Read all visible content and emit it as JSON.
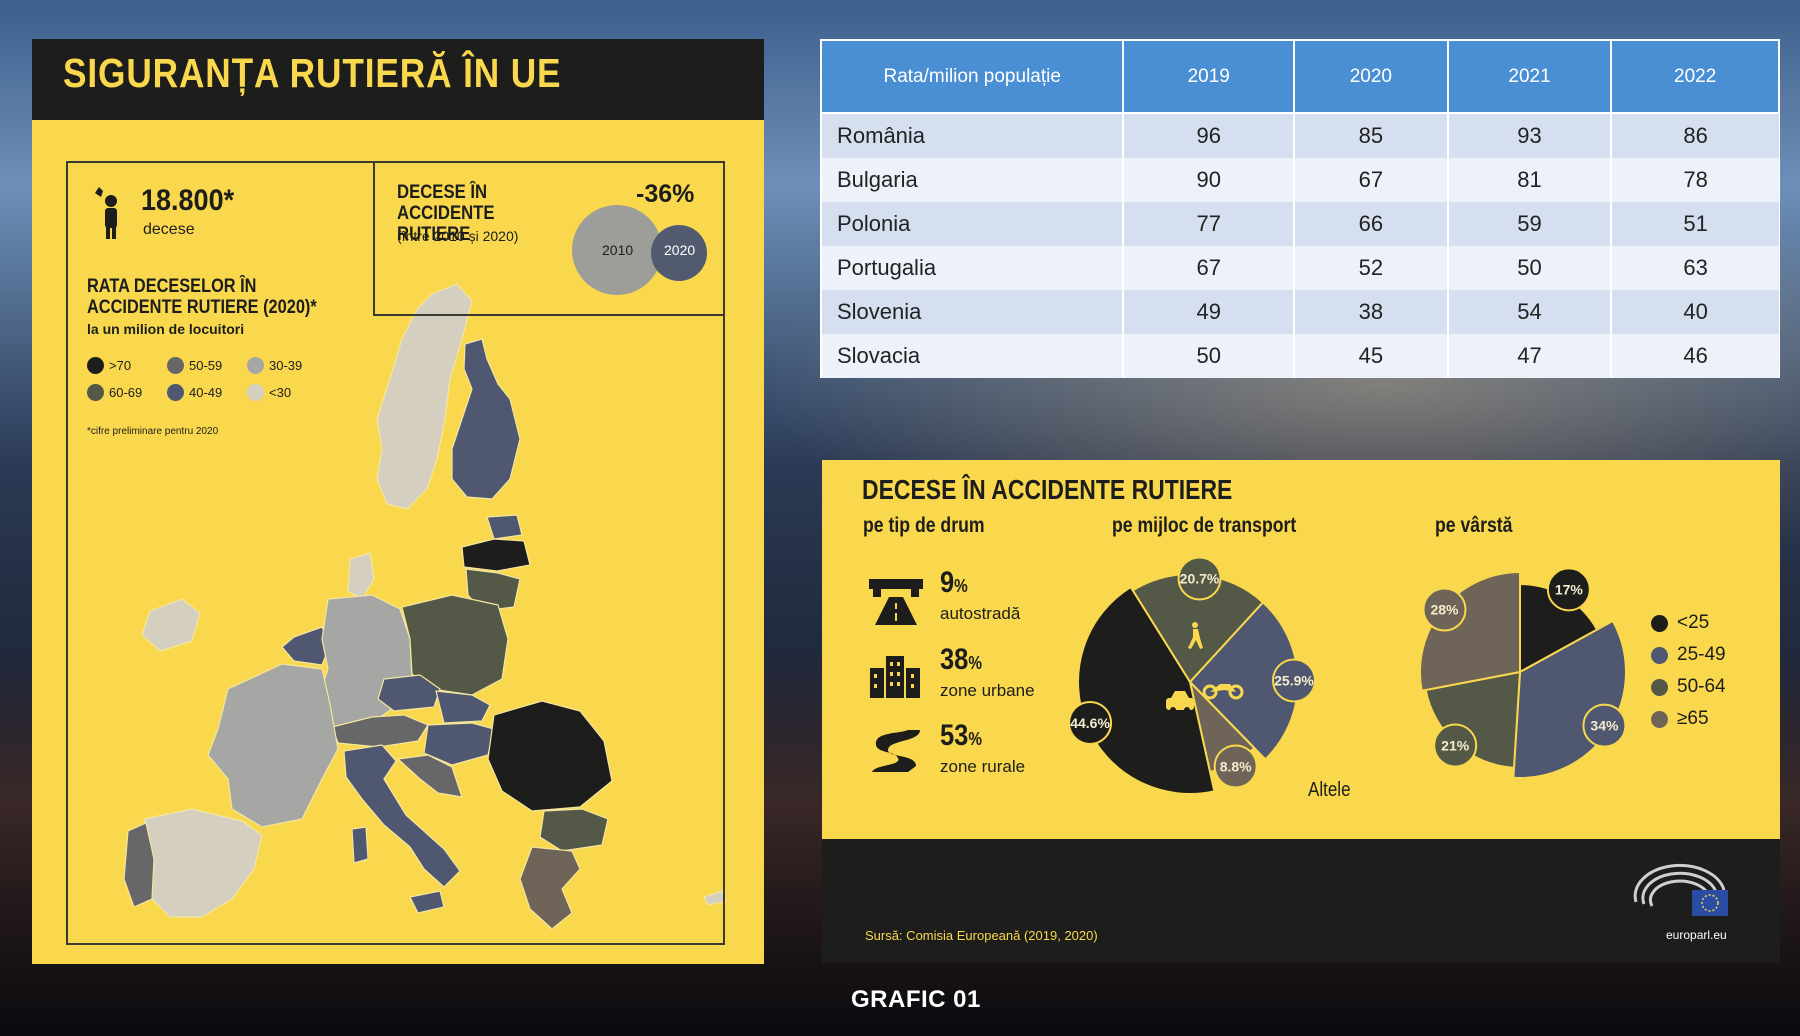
{
  "left_infographic": {
    "title": "SIGURANȚA RUTIERĂ ÎN UE",
    "deaths_number": "18.800*",
    "deaths_label": "decese",
    "decline_title": "DECESE ÎN ACCIDENTE RUTIERE",
    "decline_period": "(între 2010 și 2020)",
    "decline_percent": "-36%",
    "circle_2010_label": "2010",
    "circle_2020_label": "2020",
    "rate_title": "RATA DECESELOR ÎN ACCIDENTE RUTIERE (2020)*",
    "rate_subtitle": "la un milion de locuitori",
    "legend": [
      {
        "label": ">70",
        "color": "#1d1d1b"
      },
      {
        "label": "50-59",
        "color": "#67676a"
      },
      {
        "label": "30-39",
        "color": "#a6a6a4"
      },
      {
        "label": "60-69",
        "color": "#535847"
      },
      {
        "label": "40-49",
        "color": "#4f5870"
      },
      {
        "label": "<30",
        "color": "#d5cfc0"
      }
    ],
    "footnote": "*cifre preliminare pentru 2020"
  },
  "table": {
    "headers": [
      "Rata/milion populație",
      "2019",
      "2020",
      "2021",
      "2022"
    ],
    "rows": [
      [
        "România",
        "96",
        "85",
        "93",
        "86"
      ],
      [
        "Bulgaria",
        "90",
        "67",
        "81",
        "78"
      ],
      [
        "Polonia",
        "77",
        "66",
        "59",
        "51"
      ],
      [
        "Portugalia",
        "67",
        "52",
        "50",
        "63"
      ],
      [
        "Slovenia",
        "49",
        "38",
        "54",
        "40"
      ],
      [
        "Slovacia",
        "50",
        "45",
        "47",
        "46"
      ]
    ]
  },
  "bottom_infographic": {
    "title": "DECESE ÎN ACCIDENTE RUTIERE",
    "road_section_title": "pe tip de drum",
    "transport_section_title": "pe mijloc de transport",
    "age_section_title": "pe vârstă",
    "road_types": [
      {
        "value": "9",
        "unit": "%",
        "label": "autostradă",
        "icon": "highway-icon"
      },
      {
        "value": "38",
        "unit": "%",
        "label": "zone urbane",
        "icon": "building-icon"
      },
      {
        "value": "53",
        "unit": "%",
        "label": "zone rurale",
        "icon": "winding-road-icon"
      }
    ],
    "transport_labels": {
      "pedestrian": "20.7%",
      "motorcycle": "25.9%",
      "other": "8.8%",
      "car": "44.6%"
    },
    "transport_other_label": "Altele",
    "age_labels": {
      "under25": "17%",
      "25_49": "34%",
      "50_64": "21%",
      "65plus": "28%"
    },
    "age_legend": [
      "<25",
      "25-49",
      "50-64",
      "≥65"
    ],
    "source": "Sursă: Comisia Europeană (2019, 2020)",
    "logo_text": "europarl.eu"
  },
  "caption": "GRAFIC 01",
  "colors": {
    "yellow": "#f9d84e",
    "dark": "#1d1d1b",
    "table_header": "#4a8fd3",
    "slate": "#4f5870",
    "olive": "#535847",
    "taupe": "#6f6458"
  },
  "chart_data": [
    {
      "type": "pie",
      "categories": [
        "Mașină",
        "Pietoni",
        "Motocicletă",
        "Altele"
      ],
      "values": [
        44.6,
        20.7,
        25.9,
        8.8
      ]
    },
    {
      "type": "pie",
      "categories": [
        "<25",
        "25-49",
        "50-64",
        "≥65"
      ],
      "values": [
        17,
        34,
        21,
        28
      ]
    }
  ]
}
